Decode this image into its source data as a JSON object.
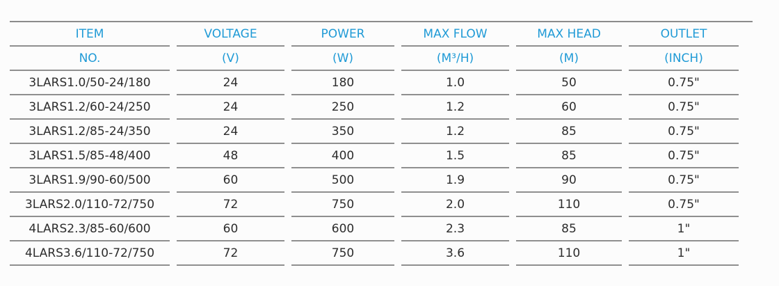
{
  "table": {
    "title": "pump-specification-table",
    "colors": {
      "header_text": "#1f9ad6",
      "body_text": "#2d2d2d",
      "rule": "#8f8f8f",
      "background": "#fcfcfc"
    },
    "headers": [
      {
        "line1": "ITEM",
        "line2": "NO."
      },
      {
        "line1": "VOLTAGE",
        "line2": "(V)"
      },
      {
        "line1": "POWER",
        "line2": "(W)"
      },
      {
        "line1": "MAX FLOW",
        "line2": "(M³/H)"
      },
      {
        "line1": "MAX HEAD",
        "line2": "(M)"
      },
      {
        "line1": "OUTLET",
        "line2": "(INCH)"
      }
    ],
    "rows": [
      [
        "3LARS1.0/50-24/180",
        "24",
        "180",
        "1.0",
        "50",
        "0.75\""
      ],
      [
        "3LARS1.2/60-24/250",
        "24",
        "250",
        "1.2",
        "60",
        "0.75\""
      ],
      [
        "3LARS1.2/85-24/350",
        "24",
        "350",
        "1.2",
        "85",
        "0.75\""
      ],
      [
        "3LARS1.5/85-48/400",
        "48",
        "400",
        "1.5",
        "85",
        "0.75\""
      ],
      [
        "3LARS1.9/90-60/500",
        "60",
        "500",
        "1.9",
        "90",
        "0.75\""
      ],
      [
        "3LARS2.0/110-72/750",
        "72",
        "750",
        "2.0",
        "110",
        "0.75\""
      ],
      [
        "4LARS2.3/85-60/600",
        "60",
        "600",
        "2.3",
        "85",
        "1\""
      ],
      [
        "4LARS3.6/110-72/750",
        "72",
        "750",
        "3.6",
        "110",
        "1\""
      ]
    ]
  }
}
